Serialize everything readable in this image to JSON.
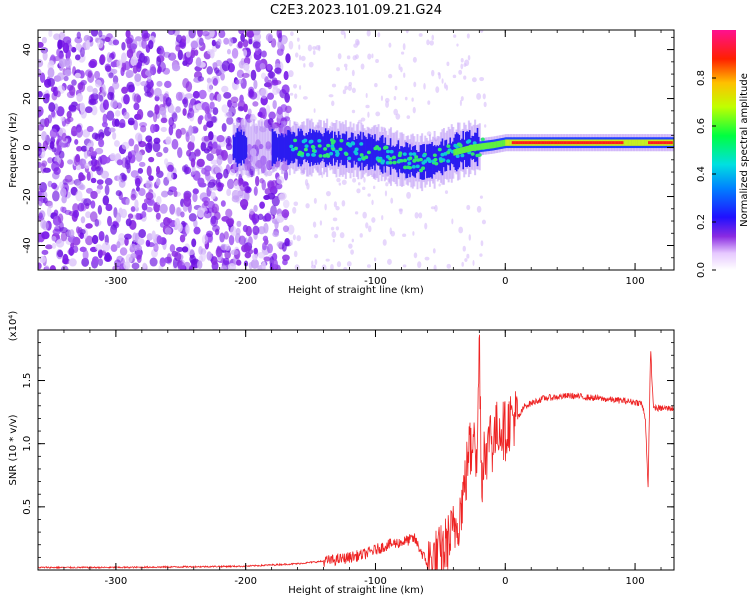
{
  "title": "C2E3.2023.101.09.21.G24",
  "chart_data": [
    {
      "type": "heatmap",
      "xlabel": "Height of straight line (km)",
      "ylabel": "Frequency (Hz)",
      "xlim": [
        -360,
        130
      ],
      "ylim": [
        -50,
        48
      ],
      "xticks": [
        -300,
        -200,
        -100,
        0,
        100
      ],
      "yticks": [
        -40,
        -20,
        0,
        20,
        40
      ],
      "colorbar": {
        "label": "Normalized spectral amplitude",
        "range": [
          0,
          1
        ],
        "ticks": [
          0.0,
          0.2,
          0.4,
          0.6,
          0.8
        ]
      },
      "colors": {
        "noise": "#7a1ae8",
        "signal_low": "#1a2cff",
        "signal_mid": "#18e0a8",
        "signal_high": "#ff1a1a"
      },
      "features": {
        "noise_region_x": [
          -360,
          -165
        ],
        "signal_centerline": [
          {
            "x": -210,
            "y": 0
          },
          {
            "x": -165,
            "y": 0
          },
          {
            "x": -140,
            "y": 0
          },
          {
            "x": -120,
            "y": -1
          },
          {
            "x": -100,
            "y": -2
          },
          {
            "x": -80,
            "y": -5
          },
          {
            "x": -65,
            "y": -6
          },
          {
            "x": -55,
            "y": -5
          },
          {
            "x": -40,
            "y": -2
          },
          {
            "x": -25,
            "y": 0
          },
          {
            "x": -10,
            "y": 1
          },
          {
            "x": 0,
            "y": 2
          },
          {
            "x": 50,
            "y": 2
          },
          {
            "x": 100,
            "y": 2
          },
          {
            "x": 130,
            "y": 2
          }
        ]
      }
    },
    {
      "type": "line",
      "xlabel": "Height of straight line (km)",
      "ylabel": "SNR (10 * v/v)",
      "multiplier": "(x10⁴)",
      "xlim": [
        -360,
        130
      ],
      "ylim": [
        0,
        1.9
      ],
      "xticks": [
        -300,
        -200,
        -100,
        0,
        100
      ],
      "yticks": [
        0.5,
        1.0,
        1.5
      ],
      "series": [
        {
          "color": "#ee2222",
          "x": [
            -360,
            -300,
            -250,
            -200,
            -160,
            -130,
            -110,
            -100,
            -90,
            -80,
            -70,
            -60,
            -55,
            -50,
            -45,
            -40,
            -35,
            -30,
            -28,
            -26,
            -24,
            -22,
            -20,
            -18,
            -16,
            -14,
            -12,
            -10,
            -5,
            0,
            5,
            10,
            15,
            20,
            30,
            40,
            50,
            60,
            70,
            80,
            90,
            100,
            105,
            108,
            110,
            112,
            114,
            116,
            120,
            125,
            130
          ],
          "y": [
            0.02,
            0.02,
            0.025,
            0.03,
            0.05,
            0.08,
            0.12,
            0.16,
            0.2,
            0.22,
            0.25,
            0.05,
            0.08,
            0.12,
            0.2,
            0.3,
            0.45,
            0.75,
            1.0,
            0.9,
            1.3,
            0.7,
            1.85,
            0.6,
            1.1,
            0.8,
            1.2,
            1.0,
            1.15,
            1.1,
            1.22,
            1.2,
            1.3,
            1.32,
            1.36,
            1.37,
            1.38,
            1.37,
            1.36,
            1.35,
            1.34,
            1.33,
            1.32,
            1.2,
            0.65,
            1.75,
            1.3,
            1.28,
            1.28,
            1.28,
            1.28
          ]
        }
      ]
    }
  ]
}
